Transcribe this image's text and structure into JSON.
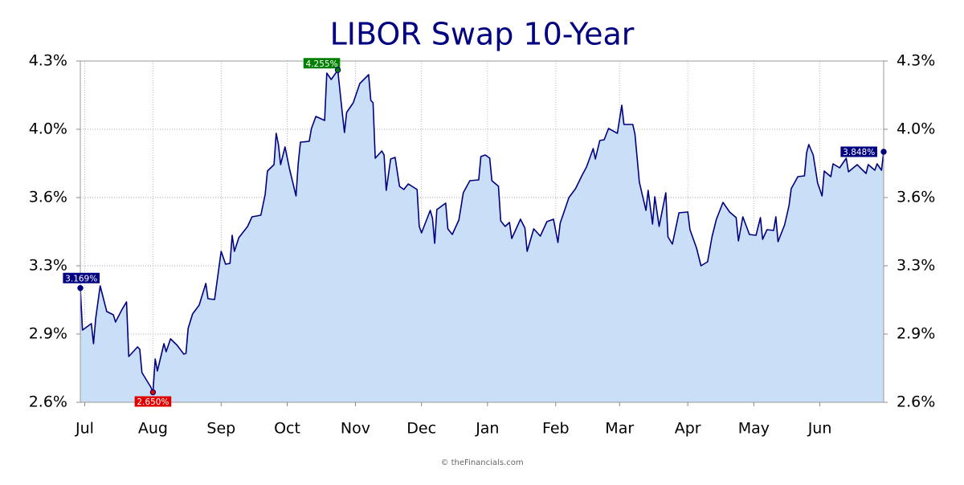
{
  "chart_data": {
    "type": "area",
    "title": "LIBOR Swap 10-Year",
    "footer": "© theFinancials.com",
    "xlim": [
      0,
      365
    ],
    "xticks": [
      {
        "value": 2,
        "label": "Jul"
      },
      {
        "value": 33,
        "label": "Aug"
      },
      {
        "value": 64,
        "label": "Sep"
      },
      {
        "value": 94,
        "label": "Oct"
      },
      {
        "value": 125,
        "label": "Nov"
      },
      {
        "value": 155,
        "label": "Dec"
      },
      {
        "value": 185,
        "label": "Jan"
      },
      {
        "value": 216,
        "label": "Feb"
      },
      {
        "value": 245,
        "label": "Mar"
      },
      {
        "value": 276,
        "label": "Apr"
      },
      {
        "value": 306,
        "label": "May"
      },
      {
        "value": 336,
        "label": "Jun"
      }
    ],
    "ylim": [
      2.6,
      4.3
    ],
    "yticks": [
      {
        "value": 2.6,
        "label": "2.6%"
      },
      {
        "value": 2.94,
        "label": "2.9%"
      },
      {
        "value": 3.28,
        "label": "3.3%"
      },
      {
        "value": 3.62,
        "label": "3.6%"
      },
      {
        "value": 3.96,
        "label": "4.0%"
      },
      {
        "value": 4.3,
        "label": "4.3%"
      }
    ],
    "grid": true,
    "color": "#000080",
    "fill": "#c9dff7",
    "x": [
      0,
      1,
      5,
      6,
      7,
      9,
      12,
      15,
      16,
      19,
      21,
      22,
      26,
      27,
      28,
      32,
      33,
      34,
      35,
      38,
      39,
      41,
      44,
      47,
      48,
      49,
      51,
      54,
      57,
      58,
      61,
      63,
      64,
      66,
      68,
      69,
      70,
      72,
      76,
      78,
      82,
      84,
      85,
      88,
      89,
      90,
      91,
      93,
      95,
      98,
      99,
      100,
      104,
      105,
      107,
      111,
      112,
      114,
      117,
      119,
      120,
      121,
      124,
      127,
      131,
      132,
      133,
      134,
      137,
      138,
      139,
      141,
      143,
      145,
      147,
      149,
      153,
      154,
      155,
      159,
      160,
      161,
      162,
      166,
      167,
      169,
      172,
      173,
      174,
      177,
      181,
      182,
      184,
      186,
      187,
      190,
      191,
      193,
      195,
      196,
      198,
      200,
      202,
      203,
      206,
      209,
      212,
      215,
      217,
      218,
      222,
      225,
      228,
      230,
      233,
      234,
      236,
      238,
      240,
      244,
      246,
      247,
      251,
      252,
      254,
      257,
      258,
      260,
      261,
      263,
      266,
      267,
      269,
      272,
      276,
      277,
      280,
      282,
      285,
      287,
      289,
      292,
      295,
      298,
      299,
      301,
      304,
      307,
      309,
      310,
      312,
      315,
      316,
      317,
      320,
      322,
      323,
      326,
      329,
      330,
      331,
      333,
      335,
      337,
      338,
      341,
      342,
      345,
      348,
      349,
      353,
      354,
      357,
      358,
      361,
      362,
      364,
      365
    ],
    "values": [
      3.169,
      2.96,
      2.992,
      2.892,
      3.02,
      3.18,
      3.052,
      3.036,
      3.0,
      3.064,
      3.1,
      2.828,
      2.876,
      2.864,
      2.748,
      2.676,
      2.65,
      2.816,
      2.756,
      2.892,
      2.852,
      2.916,
      2.884,
      2.84,
      2.844,
      2.968,
      3.04,
      3.084,
      3.192,
      3.116,
      3.112,
      3.272,
      3.352,
      3.288,
      3.292,
      3.432,
      3.352,
      3.42,
      3.476,
      3.524,
      3.532,
      3.636,
      3.752,
      3.784,
      3.94,
      3.884,
      3.784,
      3.872,
      3.764,
      3.628,
      3.788,
      3.896,
      3.9,
      3.964,
      4.024,
      4.004,
      4.24,
      4.208,
      4.255,
      4.044,
      3.944,
      4.044,
      4.092,
      4.188,
      4.232,
      4.104,
      4.092,
      3.816,
      3.852,
      3.832,
      3.656,
      3.812,
      3.82,
      3.676,
      3.66,
      3.688,
      3.66,
      3.476,
      3.444,
      3.556,
      3.516,
      3.392,
      3.56,
      3.592,
      3.464,
      3.436,
      3.508,
      3.576,
      3.644,
      3.704,
      3.708,
      3.824,
      3.832,
      3.816,
      3.704,
      3.676,
      3.504,
      3.476,
      3.496,
      3.416,
      3.464,
      3.512,
      3.468,
      3.352,
      3.464,
      3.428,
      3.5,
      3.512,
      3.396,
      3.492,
      3.62,
      3.664,
      3.732,
      3.772,
      3.864,
      3.812,
      3.904,
      3.908,
      3.964,
      3.94,
      4.08,
      3.984,
      3.984,
      3.936,
      3.696,
      3.556,
      3.656,
      3.488,
      3.624,
      3.476,
      3.644,
      3.424,
      3.388,
      3.544,
      3.548,
      3.46,
      3.368,
      3.28,
      3.3,
      3.424,
      3.512,
      3.596,
      3.548,
      3.52,
      3.404,
      3.524,
      3.436,
      3.432,
      3.52,
      3.412,
      3.46,
      3.456,
      3.524,
      3.4,
      3.484,
      3.58,
      3.664,
      3.724,
      3.728,
      3.844,
      3.884,
      3.832,
      3.692,
      3.628,
      3.752,
      3.724,
      3.788,
      3.768,
      3.816,
      3.748,
      3.784,
      3.772,
      3.74,
      3.784,
      3.756,
      3.788,
      3.756,
      3.848
    ],
    "value_labels": [
      "3.169%",
      null,
      null,
      null,
      null,
      null,
      null,
      null,
      null,
      null,
      null,
      null,
      null,
      null,
      null,
      null,
      "2.650%",
      null,
      null,
      null,
      null,
      null,
      null,
      null,
      null,
      null,
      null,
      null,
      null,
      null,
      null,
      null,
      null,
      null,
      null,
      null,
      null,
      null,
      null,
      null,
      null,
      null,
      null,
      null,
      null,
      null,
      null,
      null,
      null,
      null,
      null,
      null,
      null,
      null,
      null,
      null,
      null,
      null,
      "4.255%",
      null,
      null,
      null,
      null,
      null,
      null,
      null,
      null,
      null,
      null,
      null,
      null,
      null,
      null,
      null,
      null,
      null,
      null,
      null,
      null,
      null,
      null,
      null,
      null,
      null,
      null,
      null,
      null,
      null,
      null,
      null,
      null,
      null,
      null,
      null,
      null,
      null,
      null,
      null,
      null,
      null,
      null,
      null,
      null,
      null,
      null,
      null,
      null,
      null,
      null,
      null,
      null,
      null,
      null,
      null,
      null,
      null,
      null,
      null,
      null,
      null,
      null,
      null,
      null,
      null,
      null,
      null,
      null,
      null,
      null,
      null,
      null,
      null,
      null,
      null,
      null,
      null,
      null,
      null,
      null,
      null,
      null,
      null,
      null,
      null,
      null,
      null,
      null,
      null,
      null,
      null,
      null,
      null,
      null,
      null,
      null,
      null,
      null,
      null,
      null,
      null,
      null,
      null,
      null,
      null,
      null,
      null,
      null,
      null,
      null,
      null,
      null,
      null,
      null,
      null,
      null,
      null,
      null,
      "3.848%"
    ]
  }
}
